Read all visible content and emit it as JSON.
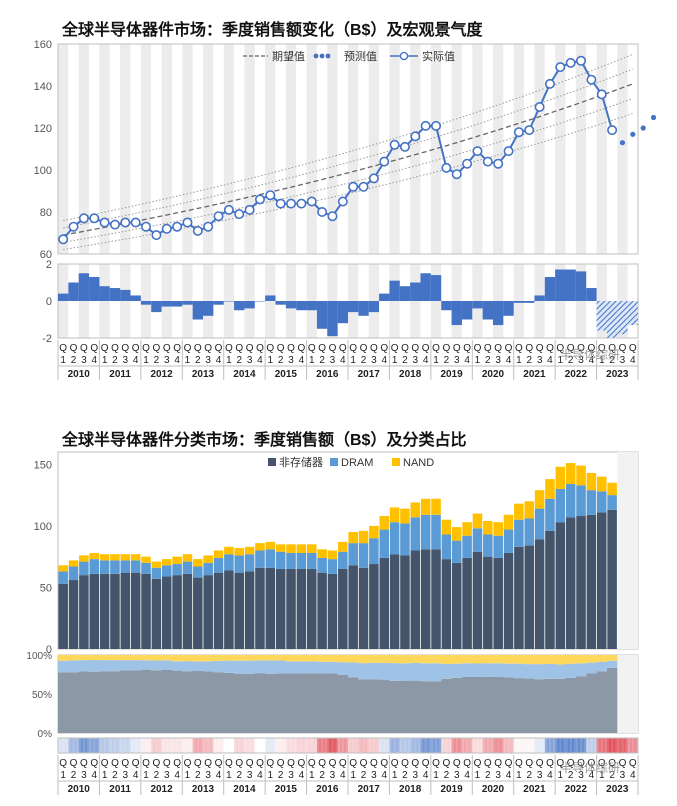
{
  "watermark": "半导体综研",
  "chart_data": [
    {
      "type": "line",
      "title": "全球半导体器件市场：季度销售额变化（B$）及宏观景气度",
      "ylim": [
        60,
        160
      ],
      "yticks": [
        60,
        80,
        100,
        120,
        140,
        160
      ],
      "legend": [
        "期望值",
        "预测值",
        "实际值"
      ],
      "years": [
        "2010",
        "2011",
        "2012",
        "2013",
        "2014",
        "2015",
        "2016",
        "2017",
        "2018",
        "2019",
        "2020",
        "2021",
        "2022",
        "2023"
      ],
      "quarter_labels": [
        "Q1",
        "Q2",
        "Q3",
        "Q4"
      ],
      "actual": [
        67,
        73,
        77,
        77,
        75,
        74,
        75,
        75,
        73,
        69,
        72,
        73,
        75,
        71,
        73,
        78,
        81,
        79,
        81,
        86,
        88,
        84,
        84,
        84,
        85,
        80,
        78,
        85,
        92,
        92,
        96,
        104,
        112,
        111,
        116,
        121,
        121,
        101,
        98,
        103,
        109,
        104,
        103,
        109,
        118,
        119,
        130,
        141,
        149,
        151,
        152,
        143,
        136,
        119
      ],
      "forecast": [
        113,
        117,
        120,
        125
      ],
      "trend_start": 69,
      "trend_end": 141,
      "band_pct": [
        0.1,
        -0.1,
        0.05,
        -0.05
      ]
    },
    {
      "type": "bar",
      "title": "宏观景气度",
      "ylim": [
        -2,
        2
      ],
      "yticks": [
        -2,
        0,
        2
      ],
      "values": [
        0.4,
        1.0,
        1.5,
        1.3,
        0.8,
        0.7,
        0.6,
        0.3,
        -0.2,
        -0.6,
        -0.3,
        -0.3,
        -0.2,
        -1.0,
        -0.8,
        -0.2,
        0,
        -0.5,
        -0.4,
        0,
        0.3,
        -0.2,
        -0.4,
        -0.5,
        -0.5,
        -1.5,
        -1.9,
        -1.2,
        -0.6,
        -0.8,
        -0.6,
        0.4,
        1.1,
        0.8,
        1.0,
        1.5,
        1.4,
        -0.5,
        -1.3,
        -1.0,
        -0.4,
        -1.0,
        -1.3,
        -0.8,
        -0.1,
        -0.1,
        0.3,
        1.3,
        1.7,
        1.7,
        1.6,
        0.7
      ],
      "forecast_values": [
        -1.6,
        -2.0,
        -1.8,
        -1.3
      ]
    },
    {
      "type": "stacked-bar",
      "title": "全球半导体器件分类市场：季度销售额（B$）及分类占比",
      "ylim": [
        0,
        160
      ],
      "yticks": [
        0,
        50,
        100,
        150
      ],
      "series": [
        {
          "name": "非存储器",
          "color": "#44546a",
          "values": [
            53,
            56,
            60,
            61,
            61,
            61,
            62,
            62,
            61,
            57,
            59,
            60,
            61,
            58,
            60,
            62,
            64,
            62,
            63,
            66,
            66,
            65,
            65,
            65,
            65,
            62,
            61,
            65,
            68,
            66,
            69,
            74,
            77,
            76,
            80,
            81,
            81,
            73,
            70,
            74,
            79,
            75,
            74,
            78,
            83,
            84,
            89,
            96,
            103,
            107,
            108,
            109,
            111,
            113
          ]
        },
        {
          "name": "DRAM",
          "color": "#5b9bd5",
          "values": [
            10,
            11,
            11,
            12,
            11,
            11,
            10,
            10,
            9,
            9,
            9,
            9,
            10,
            9,
            10,
            12,
            13,
            14,
            14,
            14,
            15,
            14,
            13,
            13,
            13,
            12,
            12,
            14,
            18,
            20,
            21,
            23,
            26,
            26,
            27,
            28,
            28,
            20,
            18,
            18,
            19,
            18,
            18,
            19,
            22,
            22,
            25,
            26,
            27,
            27,
            25,
            20,
            17,
            12
          ]
        },
        {
          "name": "NAND",
          "color": "#ffc000",
          "values": [
            5,
            5,
            5,
            5,
            5,
            5,
            5,
            5,
            5,
            5,
            5,
            6,
            6,
            6,
            6,
            6,
            6,
            6,
            6,
            6,
            6,
            6,
            7,
            7,
            7,
            7,
            7,
            8,
            9,
            10,
            10,
            11,
            12,
            12,
            12,
            13,
            13,
            12,
            11,
            11,
            12,
            11,
            11,
            12,
            13,
            14,
            15,
            16,
            18,
            17,
            16,
            14,
            12,
            10
          ]
        }
      ]
    },
    {
      "type": "stacked-area",
      "title": "分类占比",
      "ylim": [
        0,
        100
      ],
      "yticks": [
        "0%",
        "50%",
        "100%"
      ]
    }
  ]
}
